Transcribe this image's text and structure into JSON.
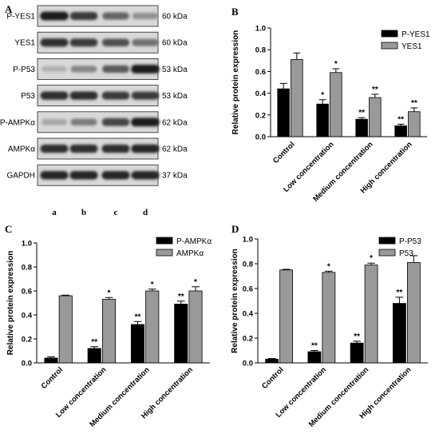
{
  "panel_a": {
    "letter": "A",
    "rows": [
      {
        "label": "P-YES1",
        "kda": "60 kDa",
        "intensity": [
          0.95,
          0.8,
          0.6,
          0.4
        ]
      },
      {
        "label": "YES1",
        "kda": "60 kDa",
        "intensity": [
          0.85,
          0.8,
          0.7,
          0.55
        ]
      },
      {
        "label": "P-P53",
        "kda": "53 kDa",
        "intensity": [
          0.25,
          0.45,
          0.65,
          0.95
        ]
      },
      {
        "label": "P53",
        "kda": "53 kDa",
        "intensity": [
          0.85,
          0.85,
          0.8,
          0.8
        ]
      },
      {
        "label": "P-AMPKα",
        "kda": "62 kDa",
        "intensity": [
          0.3,
          0.5,
          0.75,
          0.95
        ]
      },
      {
        "label": "AMPKα",
        "kda": "62 kDa",
        "intensity": [
          0.85,
          0.85,
          0.85,
          0.9
        ]
      },
      {
        "label": "GAPDH",
        "kda": "37 kDa",
        "intensity": [
          0.9,
          0.9,
          0.9,
          0.9
        ]
      }
    ],
    "lanes": [
      "a",
      "b",
      "c",
      "d"
    ]
  },
  "chart_data": [
    {
      "panel": "B",
      "type": "bar",
      "categories": [
        "Control",
        "Low concentration",
        "Medium concentration",
        "High concentration"
      ],
      "ylabel": "Relative protein expression",
      "ylim": [
        0,
        1.0
      ],
      "yticks": [
        "0.0",
        "0.2",
        "0.4",
        "0.6",
        "0.8",
        "1.0"
      ],
      "legend_position": "top-right",
      "series": [
        {
          "name": "P-YES1",
          "color": "#000000",
          "values": [
            0.44,
            0.3,
            0.16,
            0.1
          ],
          "errors": [
            0.05,
            0.04,
            0.015,
            0.015
          ],
          "sig": [
            "",
            "*",
            "**",
            "**"
          ]
        },
        {
          "name": "YES1",
          "color": "#999999",
          "values": [
            0.71,
            0.59,
            0.36,
            0.23
          ],
          "errors": [
            0.06,
            0.035,
            0.03,
            0.035
          ],
          "sig": [
            "",
            "*",
            "**",
            "**"
          ]
        }
      ]
    },
    {
      "panel": "C",
      "type": "bar",
      "categories": [
        "Control",
        "Low concentration",
        "Medium concentration",
        "High concentration"
      ],
      "ylabel": "Relative protein expression",
      "ylim": [
        0,
        1.0
      ],
      "yticks": [
        "0.0",
        "0.2",
        "0.4",
        "0.6",
        "0.8",
        "1.0"
      ],
      "legend_position": "top-right",
      "series": [
        {
          "name": "P-AMPKα",
          "color": "#000000",
          "values": [
            0.04,
            0.12,
            0.32,
            0.49
          ],
          "errors": [
            0.01,
            0.015,
            0.025,
            0.025
          ],
          "sig": [
            "",
            "**",
            "**",
            "**"
          ]
        },
        {
          "name": "AMPKα",
          "color": "#999999",
          "values": [
            0.56,
            0.53,
            0.6,
            0.6
          ],
          "errors": [
            0.005,
            0.015,
            0.015,
            0.035
          ],
          "sig": [
            "",
            "*",
            "*",
            "*"
          ]
        }
      ]
    },
    {
      "panel": "D",
      "type": "bar",
      "categories": [
        "Control",
        "Low concentration",
        "Medium concentration",
        "High concentration"
      ],
      "ylabel": "Relative protein expression",
      "ylim": [
        0,
        1.0
      ],
      "yticks": [
        "0.0",
        "0.2",
        "0.4",
        "0.6",
        "0.8",
        "1.0"
      ],
      "legend_position": "top-right",
      "series": [
        {
          "name": "P-P53",
          "color": "#000000",
          "values": [
            0.03,
            0.09,
            0.16,
            0.48
          ],
          "errors": [
            0.005,
            0.01,
            0.015,
            0.05
          ],
          "sig": [
            "",
            "**",
            "**",
            "**"
          ]
        },
        {
          "name": "P53",
          "color": "#999999",
          "values": [
            0.75,
            0.73,
            0.79,
            0.81
          ],
          "errors": [
            0.005,
            0.01,
            0.015,
            0.055
          ],
          "sig": [
            "",
            "*",
            "*",
            ""
          ]
        }
      ]
    }
  ]
}
